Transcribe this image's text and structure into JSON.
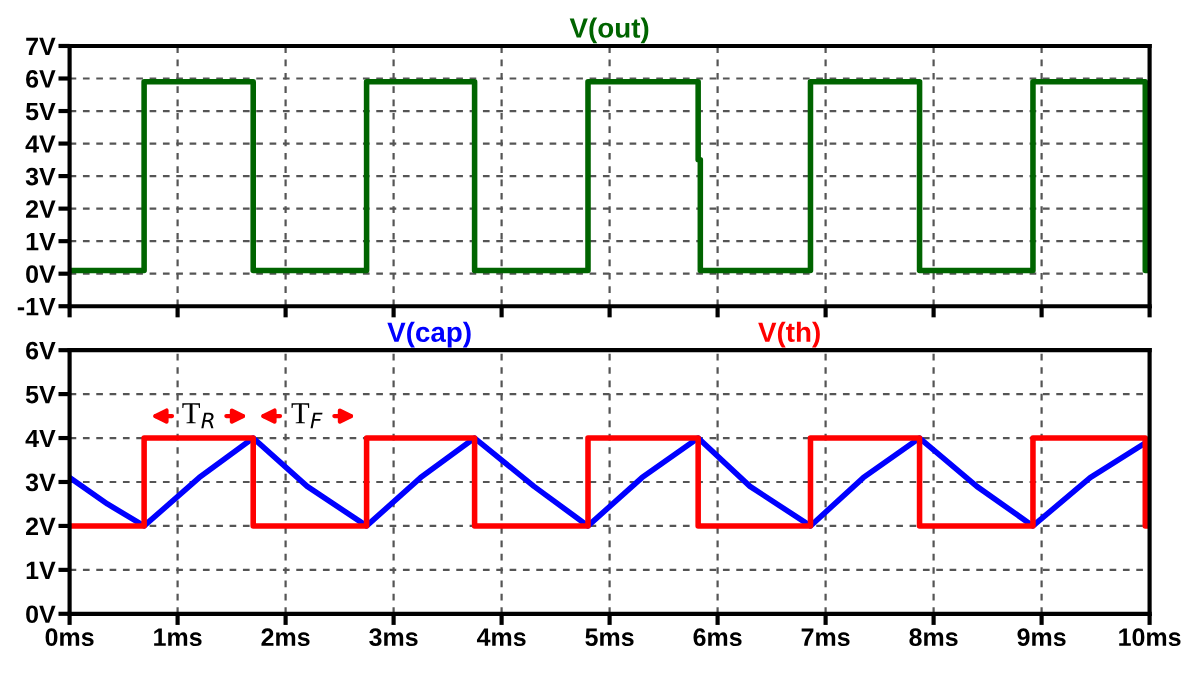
{
  "chart_data": [
    {
      "type": "line",
      "xlim": [
        0,
        10
      ],
      "xticks": [
        {
          "value": 0,
          "label": null
        },
        {
          "value": 1,
          "label": null
        },
        {
          "value": 2,
          "label": null
        },
        {
          "value": 3,
          "label": null
        },
        {
          "value": 4,
          "label": null
        },
        {
          "value": 5,
          "label": null
        },
        {
          "value": 6,
          "label": null
        },
        {
          "value": 7,
          "label": null
        },
        {
          "value": 8,
          "label": null
        },
        {
          "value": 9,
          "label": null
        },
        {
          "value": 10,
          "label": null
        }
      ],
      "ylim": [
        -1,
        7
      ],
      "yticks": [
        {
          "value": -1,
          "label": "-1V"
        },
        {
          "value": 0,
          "label": "0V"
        },
        {
          "value": 1,
          "label": "1V"
        },
        {
          "value": 2,
          "label": "2V"
        },
        {
          "value": 3,
          "label": "3V"
        },
        {
          "value": 4,
          "label": "4V"
        },
        {
          "value": 5,
          "label": "5V"
        },
        {
          "value": 6,
          "label": "6V"
        },
        {
          "value": 7,
          "label": "7V"
        }
      ],
      "tick_labels": "y",
      "grid": true,
      "legend": false,
      "line_style": "solid",
      "series": [
        {
          "name": "V(out)",
          "color": "#006400",
          "x": [
            0,
            0.69,
            0.69,
            1.7,
            1.7,
            2.75,
            2.75,
            3.75,
            3.75,
            4.8,
            4.8,
            5.82,
            5.82,
            5.84,
            5.84,
            6.86,
            6.86,
            7.87,
            7.87,
            8.92,
            8.92,
            9.96,
            9.96,
            10
          ],
          "values": [
            0.1,
            0.1,
            5.9,
            5.9,
            0.1,
            0.1,
            5.9,
            5.9,
            0.1,
            0.1,
            5.9,
            5.9,
            3.5,
            3.5,
            0.1,
            0.1,
            5.9,
            5.9,
            0.1,
            0.1,
            5.9,
            5.9,
            0.1,
            0.1
          ]
        }
      ]
    },
    {
      "type": "line",
      "xlim": [
        0,
        10
      ],
      "xticks": [
        {
          "value": 0,
          "label": "0ms"
        },
        {
          "value": 1,
          "label": "1ms"
        },
        {
          "value": 2,
          "label": "2ms"
        },
        {
          "value": 3,
          "label": "3ms"
        },
        {
          "value": 4,
          "label": "4ms"
        },
        {
          "value": 5,
          "label": "5ms"
        },
        {
          "value": 6,
          "label": "6ms"
        },
        {
          "value": 7,
          "label": "7ms"
        },
        {
          "value": 8,
          "label": "8ms"
        },
        {
          "value": 9,
          "label": "9ms"
        },
        {
          "value": 10,
          "label": "10ms"
        }
      ],
      "ylim": [
        0,
        6
      ],
      "yticks": [
        {
          "value": 0,
          "label": "0V"
        },
        {
          "value": 1,
          "label": "1V"
        },
        {
          "value": 2,
          "label": "2V"
        },
        {
          "value": 3,
          "label": "3V"
        },
        {
          "value": 4,
          "label": "4V"
        },
        {
          "value": 5,
          "label": "5V"
        },
        {
          "value": 6,
          "label": "6V"
        }
      ],
      "grid": true,
      "legend": false,
      "line_style": "solid",
      "annotations": [
        "T$_{R}$",
        "T$_{F}$"
      ],
      "series": [
        {
          "name": "V(cap)",
          "color": "#0000ff",
          "x": [
            0,
            0.35,
            0.69,
            1.2,
            1.7,
            2.2,
            2.75,
            3.25,
            3.75,
            4.3,
            4.8,
            5.3,
            5.82,
            6.3,
            6.86,
            7.35,
            7.87,
            8.4,
            8.92,
            9.45,
            10
          ],
          "values": [
            3.1,
            2.5,
            2.0,
            3.1,
            4.0,
            2.9,
            2.0,
            3.1,
            4.0,
            2.9,
            2.0,
            3.1,
            4.0,
            2.9,
            2.0,
            3.1,
            4.0,
            2.9,
            2.0,
            3.1,
            3.95
          ]
        },
        {
          "name": "V(th)",
          "color": "#ff0000",
          "x": [
            0,
            0.69,
            0.69,
            1.7,
            1.7,
            2.75,
            2.75,
            3.75,
            3.75,
            4.8,
            4.8,
            5.82,
            5.82,
            6.86,
            6.86,
            7.87,
            7.87,
            8.92,
            8.92,
            9.96,
            9.96,
            10
          ],
          "values": [
            2,
            2,
            4,
            4,
            2,
            2,
            4,
            4,
            2,
            2,
            4,
            4,
            2,
            2,
            4,
            4,
            2,
            2,
            4,
            4,
            2,
            2
          ]
        }
      ]
    }
  ]
}
